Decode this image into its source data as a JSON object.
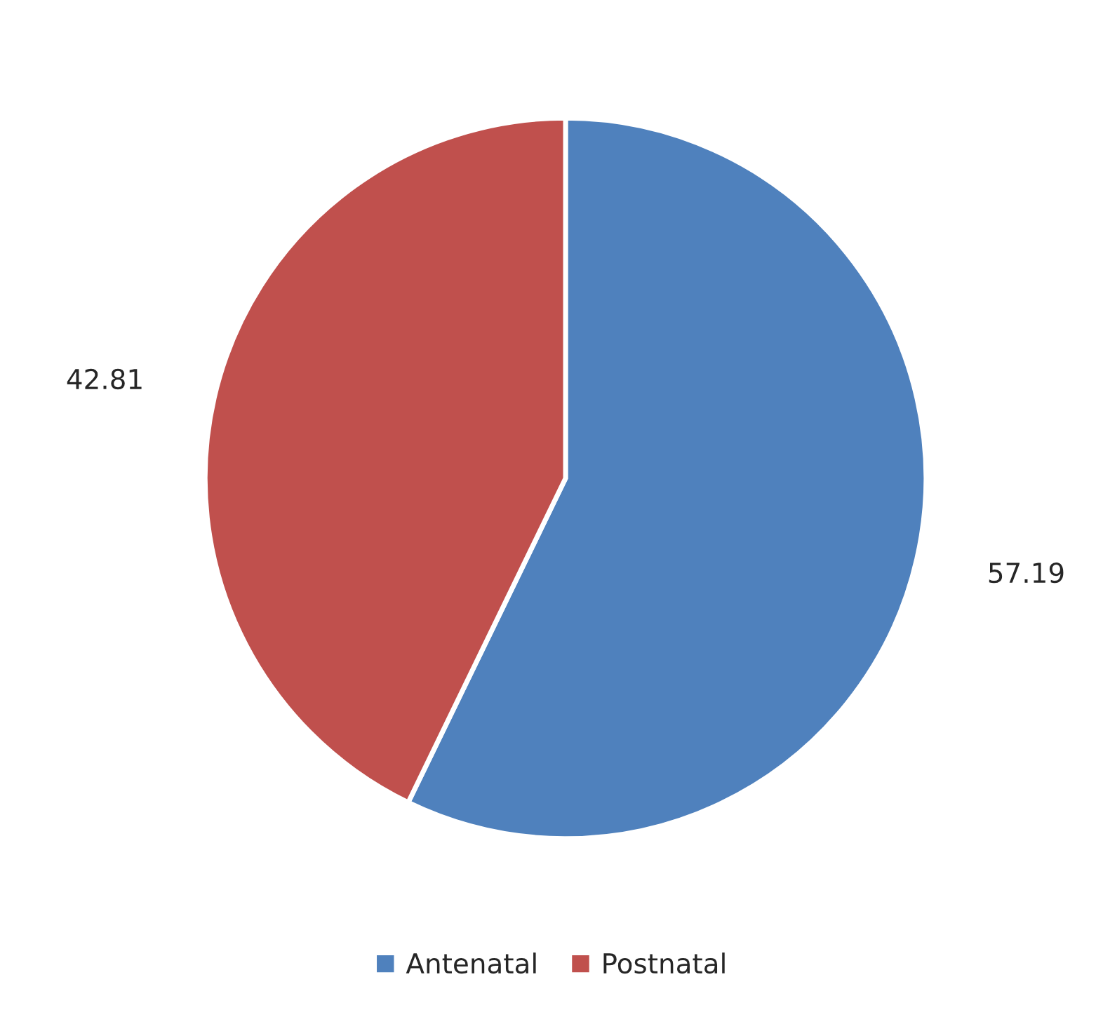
{
  "chart_data": {
    "type": "pie",
    "categories": [
      "Antenatal",
      "Postnatal"
    ],
    "values": [
      57.19,
      42.81
    ],
    "colors": [
      "#4f81bd",
      "#c0504d"
    ],
    "data_labels": true,
    "legend": "bottom"
  }
}
